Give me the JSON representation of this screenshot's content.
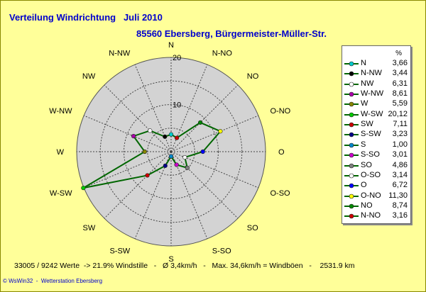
{
  "title": {
    "line1": "Verteilung Windrichtung   Juli 2010",
    "line2": "85560 Ebersberg, Bürgermeister-Müller-Str."
  },
  "colors": {
    "background": "#ffff99",
    "title": "#0000cc",
    "plot_fill": "#d3d3d3",
    "series_line": "#006600"
  },
  "chart_data": {
    "type": "radar",
    "radial_ticks": [
      "10",
      "20"
    ],
    "rmax": 20,
    "directions": [
      "N",
      "N-NW",
      "NW",
      "W-NW",
      "W",
      "W-SW",
      "SW",
      "S-SW",
      "S",
      "S-SO",
      "SO",
      "O-SO",
      "O",
      "O-NO",
      "NO",
      "N-NO"
    ],
    "values": [
      3.66,
      3.44,
      6.31,
      8.61,
      5.59,
      20.12,
      7.11,
      3.23,
      1.0,
      3.01,
      4.86,
      3.14,
      6.72,
      11.3,
      8.74,
      3.16
    ],
    "value_labels": [
      "3,66",
      "3,44",
      "6,31",
      "8,61",
      "5,59",
      "20,12",
      "7,11",
      "3,23",
      "1,00",
      "3,01",
      "4,86",
      "3,14",
      "6,72",
      "11,30",
      "8,74",
      "3,16"
    ],
    "marker_colors": [
      "#00cccc",
      "#000000",
      "#ffffff",
      "#aa00aa",
      "#888800",
      "#00cc00",
      "#cc0000",
      "#000088",
      "#0088cc",
      "#cc00cc",
      "#808080",
      "#ffffff",
      "#0000ff",
      "#ffff00",
      "#008800",
      "#cc0000"
    ],
    "legend_unit": "%"
  },
  "footer": {
    "stats": "33005 / 9242 Werte  -> 21.9% Windstille   -   Ø 3,4km/h   -   Max. 34,6km/h = Windböen   -    2531.9 km",
    "credit": "© WsWin32  -  Wetterstation Ebersberg"
  }
}
